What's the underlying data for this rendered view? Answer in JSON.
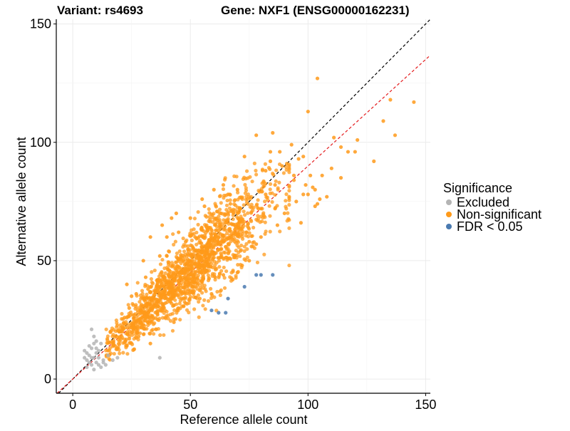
{
  "chart_data": {
    "type": "scatter",
    "title_left": "Variant: rs4693",
    "title_right": "Gene: NXF1 (ENSG00000162231)",
    "xlabel": "Reference allele count",
    "ylabel": "Alternative allele count",
    "xlim": [
      -7,
      152
    ],
    "ylim": [
      -6,
      152
    ],
    "xticks": [
      0,
      50,
      100,
      150
    ],
    "yticks": [
      0,
      50,
      100,
      150
    ],
    "grid": true,
    "legend": {
      "title": "Significance",
      "placement": "right",
      "items": [
        {
          "key": "excluded",
          "label": "Excluded",
          "color": "#b4b4b4"
        },
        {
          "key": "nonsig",
          "label": "Non-significant",
          "color": "#ff9a1a"
        },
        {
          "key": "fdr",
          "label": "FDR < 0.05",
          "color": "#4a7ab0"
        }
      ]
    },
    "reference_lines": [
      {
        "type": "identity",
        "slope": 1,
        "intercept": 0,
        "color": "#000000",
        "dash": "dashed"
      },
      {
        "type": "fitted",
        "slope": 0.9,
        "intercept": 0,
        "color": "#e41a1c",
        "dash": "dashed"
      }
    ],
    "series": [
      {
        "key": "excluded",
        "points": [
          [
            5,
            12
          ],
          [
            6,
            8
          ],
          [
            7,
            10
          ],
          [
            8,
            13
          ],
          [
            8,
            6
          ],
          [
            9,
            15
          ],
          [
            9,
            9
          ],
          [
            10,
            16
          ],
          [
            10,
            7
          ],
          [
            6,
            5
          ],
          [
            7,
            14
          ],
          [
            11,
            6
          ],
          [
            12,
            5
          ],
          [
            13,
            8
          ],
          [
            8,
            21
          ],
          [
            9,
            18
          ],
          [
            10,
            11
          ],
          [
            11,
            12
          ],
          [
            13,
            7
          ],
          [
            14,
            6
          ],
          [
            15,
            10
          ],
          [
            6,
            11
          ],
          [
            7,
            7
          ],
          [
            9,
            4
          ],
          [
            17,
            8
          ],
          [
            19,
            9
          ],
          [
            37,
            9
          ],
          [
            12,
            15
          ],
          [
            5,
            9
          ],
          [
            8,
            9
          ],
          [
            10,
            13
          ],
          [
            11,
            9
          ]
        ]
      },
      {
        "key": "fdr",
        "points": [
          [
            59,
            29
          ],
          [
            62,
            28
          ],
          [
            65,
            28
          ],
          [
            66,
            34
          ],
          [
            73,
            39
          ],
          [
            78,
            44
          ],
          [
            80,
            44
          ],
          [
            85,
            44
          ]
        ]
      },
      {
        "key": "nonsig",
        "points": [
          [
            104,
            127
          ],
          [
            100,
            113
          ],
          [
            135,
            118
          ],
          [
            145,
            117
          ],
          [
            137,
            103
          ],
          [
            132,
            109
          ],
          [
            128,
            92
          ],
          [
            117,
            96
          ],
          [
            121,
            101
          ],
          [
            120,
            96
          ],
          [
            110,
            89
          ],
          [
            106,
            86
          ],
          [
            103,
            80
          ],
          [
            108,
            77
          ],
          [
            94,
            84
          ],
          [
            98,
            94
          ],
          [
            93,
            99
          ],
          [
            84,
            96
          ],
          [
            85,
            104
          ],
          [
            91,
            91
          ],
          [
            96,
            93
          ],
          [
            101,
            86
          ],
          [
            111,
            102
          ],
          [
            114,
            98
          ],
          [
            114,
            85
          ],
          [
            102,
            81
          ],
          [
            94,
            86
          ],
          [
            89,
            90
          ],
          [
            78,
            103
          ],
          [
            73,
            94
          ],
          [
            82,
            88
          ],
          [
            84,
            92
          ],
          [
            88,
            96
          ],
          [
            90,
            70
          ],
          [
            95,
            75
          ],
          [
            100,
            78
          ],
          [
            103,
            73
          ],
          [
            105,
            76
          ],
          [
            97,
            66
          ],
          [
            99,
            82
          ],
          [
            92,
            77
          ],
          [
            86,
            72
          ],
          [
            98,
            78
          ],
          [
            104,
            74
          ],
          [
            87,
            65
          ],
          [
            80,
            60
          ],
          [
            75,
            58
          ],
          [
            78,
            57
          ],
          [
            70,
            45
          ],
          [
            72,
            48
          ],
          [
            75,
            50
          ],
          [
            68,
            42
          ],
          [
            76,
            56
          ],
          [
            70,
            70
          ],
          [
            62,
            60
          ],
          [
            86,
            82
          ],
          [
            80,
            72
          ],
          [
            64,
            82
          ],
          [
            60,
            80
          ],
          [
            56,
            73
          ],
          [
            55,
            76
          ],
          [
            66,
            78
          ],
          [
            63,
            70
          ],
          [
            82,
            78
          ],
          [
            70,
            80
          ],
          [
            67,
            74
          ],
          [
            57,
            55
          ],
          [
            58,
            58
          ],
          [
            42,
            68
          ],
          [
            38,
            65
          ],
          [
            45,
            62
          ],
          [
            40,
            60
          ],
          [
            50,
            68
          ],
          [
            44,
            70
          ],
          [
            33,
            60
          ],
          [
            30,
            50
          ],
          [
            37,
            52
          ],
          [
            45,
            39
          ],
          [
            50,
            44
          ],
          [
            38,
            30
          ],
          [
            42,
            34
          ],
          [
            36,
            28
          ],
          [
            27,
            36
          ],
          [
            24,
            30
          ],
          [
            21,
            20
          ],
          [
            22,
            26
          ],
          [
            26,
            22
          ],
          [
            20,
            16
          ],
          [
            18,
            14
          ],
          [
            16,
            20
          ],
          [
            24,
            17
          ],
          [
            30,
            28
          ],
          [
            35,
            37
          ],
          [
            31,
            43
          ],
          [
            32,
            38
          ],
          [
            40,
            52
          ],
          [
            34,
            30
          ],
          [
            25,
            35
          ],
          [
            47,
            50
          ],
          [
            55,
            50
          ],
          [
            48,
            58
          ],
          [
            52,
            60
          ],
          [
            29,
            24
          ],
          [
            28,
            18
          ],
          [
            23,
            14
          ],
          [
            15,
            12
          ],
          [
            19,
            13
          ],
          [
            41,
            46
          ],
          [
            51,
            39
          ],
          [
            64,
            44
          ],
          [
            66,
            51
          ],
          [
            54,
            34
          ],
          [
            59,
            36
          ],
          [
            33,
            15
          ],
          [
            43,
            24
          ],
          [
            23,
            40
          ]
        ]
      }
    ],
    "generated_cloud": {
      "key": "nonsig",
      "description_of_values": "approximately 1600 additional non-significant points distributed along the diagonal from about (15,12) to (85,80), densest near reference ≈ 50, alternative ≈ 45"
    }
  }
}
